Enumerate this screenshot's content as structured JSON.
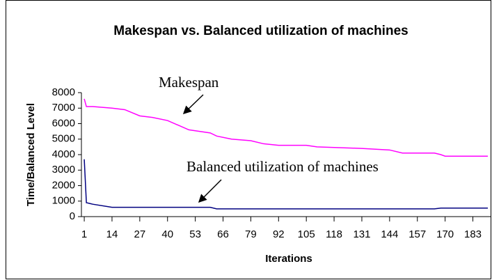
{
  "chart_data": {
    "type": "line",
    "title": "Makespan vs. Balanced utilization of machines",
    "x_label": "Iterations",
    "y_label": "Time/Balanced Level",
    "x": [
      1,
      2,
      5,
      14,
      20,
      27,
      33,
      40,
      45,
      50,
      55,
      60,
      63,
      70,
      79,
      85,
      92,
      105,
      110,
      131,
      144,
      150,
      165,
      168,
      170,
      190
    ],
    "series": [
      {
        "name": "Makespan",
        "color": "#ff00ff",
        "values": [
          7600,
          7100,
          7100,
          7000,
          6900,
          6500,
          6400,
          6200,
          5900,
          5600,
          5500,
          5400,
          5200,
          5000,
          4900,
          4700,
          4600,
          4600,
          4500,
          4400,
          4300,
          4100,
          4100,
          4000,
          3900,
          3900
        ]
      },
      {
        "name": "Balanced utilization of machines",
        "color": "#000080",
        "values": [
          3700,
          900,
          800,
          600,
          600,
          600,
          600,
          600,
          600,
          600,
          600,
          600,
          500,
          500,
          500,
          500,
          500,
          500,
          500,
          500,
          500,
          500,
          500,
          550,
          550,
          550
        ]
      }
    ],
    "xlim": [
      0,
      190
    ],
    "xticks": [
      1,
      14,
      27,
      40,
      53,
      66,
      79,
      92,
      105,
      118,
      131,
      144,
      157,
      170,
      183
    ],
    "ylim": [
      0,
      8000
    ],
    "yticks": [
      0,
      1000,
      2000,
      3000,
      4000,
      5000,
      6000,
      7000,
      8000
    ],
    "grid": false
  }
}
